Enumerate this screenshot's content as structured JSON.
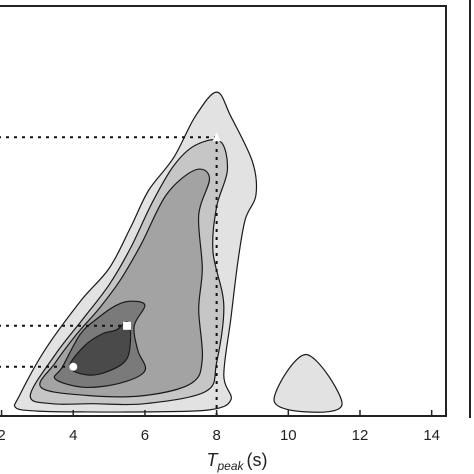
{
  "chart_data": {
    "type": "contour",
    "xlim": [
      1.9,
      14.4
    ],
    "ylim": [
      0,
      1
    ],
    "x_ticks": [
      "2",
      "4",
      "6",
      "8",
      "10",
      "12",
      "14"
    ],
    "x_tick_values": [
      2,
      4,
      6,
      8,
      10,
      12,
      14
    ],
    "xlabel": {
      "var": "T",
      "sub": "peak",
      "unit": "(s)"
    },
    "grid": false,
    "colors": {
      "levels": [
        "#e2e2e2",
        "#c6c6c6",
        "#a3a3a3",
        "#7a7a7a",
        "#4a4a4a"
      ],
      "stroke": "#1a1a1a",
      "frame": "#222222",
      "marker": "#ffffff"
    },
    "contours": [
      {
        "level": 1,
        "points": [
          [
            2.4,
            0.02
          ],
          [
            2.5,
            0.05
          ],
          [
            3.2,
            0.16
          ],
          [
            4.2,
            0.28
          ],
          [
            5.0,
            0.36
          ],
          [
            5.6,
            0.46
          ],
          [
            6.1,
            0.55
          ],
          [
            6.8,
            0.63
          ],
          [
            7.4,
            0.73
          ],
          [
            8.0,
            0.79
          ],
          [
            8.4,
            0.73
          ],
          [
            9.0,
            0.62
          ],
          [
            9.1,
            0.54
          ],
          [
            8.8,
            0.48
          ],
          [
            8.6,
            0.38
          ],
          [
            8.4,
            0.24
          ],
          [
            8.2,
            0.1
          ],
          [
            8.4,
            0.04
          ],
          [
            7.8,
            0.015
          ],
          [
            6.0,
            0.01
          ],
          [
            4.2,
            0.01
          ],
          [
            3.0,
            0.012
          ]
        ]
      },
      {
        "level": 1,
        "points": [
          [
            9.6,
            0.04
          ],
          [
            10.5,
            0.15
          ],
          [
            11.5,
            0.03
          ],
          [
            10.5,
            0.01
          ]
        ]
      },
      {
        "level": 2,
        "points": [
          [
            2.8,
            0.05
          ],
          [
            3.5,
            0.15
          ],
          [
            4.3,
            0.24
          ],
          [
            5.0,
            0.32
          ],
          [
            5.6,
            0.41
          ],
          [
            6.2,
            0.52
          ],
          [
            6.8,
            0.61
          ],
          [
            7.4,
            0.66
          ],
          [
            8.1,
            0.67
          ],
          [
            8.3,
            0.6
          ],
          [
            8.0,
            0.51
          ],
          [
            7.9,
            0.4
          ],
          [
            8.2,
            0.27
          ],
          [
            8.0,
            0.13
          ],
          [
            7.7,
            0.06
          ],
          [
            6.0,
            0.03
          ],
          [
            4.5,
            0.03
          ],
          [
            3.4,
            0.03
          ]
        ]
      },
      {
        "level": 3,
        "points": [
          [
            3.1,
            0.07
          ],
          [
            3.5,
            0.13
          ],
          [
            4.1,
            0.2
          ],
          [
            4.7,
            0.26
          ],
          [
            5.3,
            0.33
          ],
          [
            5.9,
            0.42
          ],
          [
            6.6,
            0.54
          ],
          [
            7.4,
            0.6
          ],
          [
            7.8,
            0.58
          ],
          [
            7.5,
            0.49
          ],
          [
            7.6,
            0.36
          ],
          [
            7.5,
            0.26
          ],
          [
            7.6,
            0.14
          ],
          [
            7.3,
            0.08
          ],
          [
            6.0,
            0.05
          ],
          [
            4.4,
            0.05
          ]
        ]
      },
      {
        "level": 4,
        "points": [
          [
            3.5,
            0.09
          ],
          [
            3.7,
            0.12
          ],
          [
            4.2,
            0.2
          ],
          [
            4.7,
            0.24
          ],
          [
            5.2,
            0.27
          ],
          [
            5.6,
            0.28
          ],
          [
            6.0,
            0.27
          ],
          [
            5.7,
            0.22
          ],
          [
            5.8,
            0.16
          ],
          [
            6.0,
            0.11
          ],
          [
            5.3,
            0.08
          ],
          [
            4.3,
            0.07
          ]
        ]
      },
      {
        "level": 5,
        "points": [
          [
            3.9,
            0.12
          ],
          [
            4.3,
            0.17
          ],
          [
            4.8,
            0.2
          ],
          [
            5.2,
            0.21
          ],
          [
            5.5,
            0.23
          ],
          [
            5.6,
            0.2
          ],
          [
            5.5,
            0.14
          ],
          [
            5.0,
            0.11
          ],
          [
            4.4,
            0.1
          ]
        ]
      }
    ],
    "markers": [
      {
        "shape": "circle",
        "x": 4.0,
        "y": 0.12
      },
      {
        "shape": "square",
        "x": 5.5,
        "y": 0.22
      },
      {
        "shape": "triangle",
        "x": 8.0,
        "y": 0.68
      }
    ],
    "reference_lines": [
      {
        "y": 0.12,
        "x_end": 4.0
      },
      {
        "y": 0.22,
        "x_end": 5.5
      },
      {
        "y": 0.68,
        "x_end": 8.0
      },
      {
        "x": 8.0,
        "y_end": 0.68
      }
    ]
  }
}
